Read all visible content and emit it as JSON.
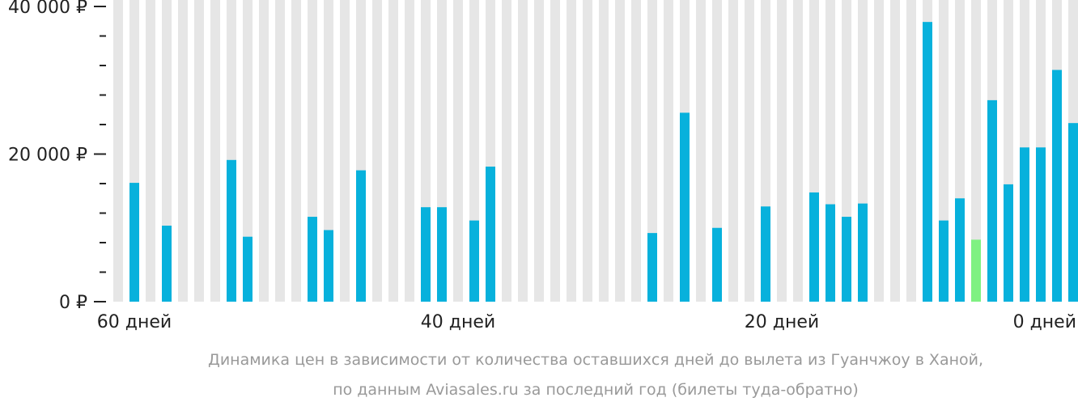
{
  "chart_data": {
    "type": "bar",
    "ylim": [
      0,
      40000
    ],
    "y_ticks": [
      {
        "value": 40000,
        "label": "40 000 ₽"
      },
      {
        "value": 20000,
        "label": "20 000 ₽"
      },
      {
        "value": 0,
        "label": "0 ₽"
      }
    ],
    "y_minor_step": 4000,
    "x_tick_labels": [
      {
        "days": 60,
        "label": "60 дней"
      },
      {
        "days": 40,
        "label": "40 дней"
      },
      {
        "days": 20,
        "label": "20 дней"
      },
      {
        "days": 0,
        "label": "0 дней"
      }
    ],
    "days": [
      61,
      60,
      59,
      58,
      57,
      56,
      55,
      54,
      53,
      52,
      51,
      50,
      49,
      48,
      47,
      46,
      45,
      44,
      43,
      42,
      41,
      40,
      39,
      38,
      37,
      36,
      35,
      34,
      33,
      32,
      31,
      30,
      29,
      28,
      27,
      26,
      25,
      24,
      23,
      22,
      21,
      20,
      19,
      18,
      17,
      16,
      15,
      14,
      13,
      12,
      11,
      10,
      9,
      8,
      7,
      6,
      5,
      4,
      3,
      2,
      1,
      0
    ],
    "values": [
      null,
      16100,
      null,
      10300,
      null,
      null,
      null,
      19200,
      8800,
      null,
      null,
      null,
      11500,
      9700,
      null,
      17800,
      null,
      null,
      null,
      12800,
      12800,
      null,
      11000,
      18300,
      null,
      null,
      null,
      null,
      null,
      null,
      null,
      null,
      null,
      9300,
      null,
      25600,
      null,
      10000,
      null,
      null,
      12900,
      null,
      null,
      14800,
      13200,
      11500,
      13300,
      null,
      null,
      null,
      37900,
      11000,
      14000,
      8400,
      27300,
      15900,
      20900,
      20900,
      31400,
      24200,
      null,
      null
    ],
    "min_index": 53,
    "colors": {
      "bar": "#07b1dc",
      "min_bar": "#7ff182",
      "background_column": "#e6e6e6",
      "axis": "#222222"
    },
    "caption_lines": [
      "Динамика цен в зависимости от количества оставшихся дней до вылета из Гуанчжоу в Ханой,",
      "по данным Aviasales.ru за последний год (билеты туда-обратно)"
    ]
  }
}
